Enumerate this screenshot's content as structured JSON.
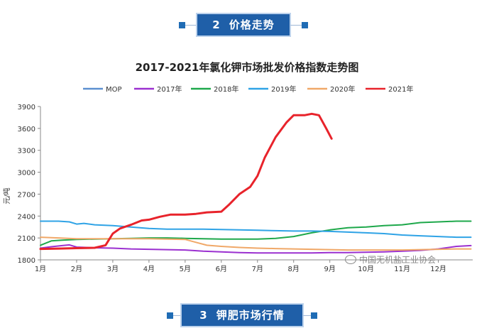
{
  "sections": {
    "price_trend": {
      "number": "2",
      "label": "价格走势"
    },
    "market": {
      "number": "3",
      "label": "钾肥市场行情"
    }
  },
  "watermark": {
    "text": "中国无机盐工业协会",
    "icon": "wechat-icon"
  },
  "chart_data": {
    "type": "line",
    "title": "2017-2021年氯化钾市场批发价格指数走势图",
    "xlabel": "",
    "ylabel": "元/吨",
    "ylim": [
      1800,
      3900
    ],
    "yticks": [
      1800,
      2100,
      2400,
      2700,
      3000,
      3300,
      3600,
      3900
    ],
    "xlim": [
      1,
      12.95
    ],
    "xticks": [
      1,
      2,
      3,
      4,
      5,
      6,
      7,
      8,
      9,
      10,
      11,
      12
    ],
    "xtick_labels": [
      "1月",
      "2月",
      "3月",
      "4月",
      "5月",
      "6月",
      "7月",
      "8月",
      "9月",
      "10月",
      "11月",
      "12月"
    ],
    "grid": false,
    "legend_position": "top",
    "series": [
      {
        "name": "MOP",
        "color": "#5b8fd0",
        "x": [],
        "y": []
      },
      {
        "name": "2017年",
        "color": "#9b30d0",
        "x": [
          1,
          1.3,
          1.6,
          1.8,
          2,
          2.5,
          3,
          3.5,
          4,
          4.5,
          5,
          5.5,
          6,
          6.5,
          7,
          7.5,
          8,
          8.5,
          9,
          9.5,
          10,
          10.5,
          11,
          11.5,
          12,
          12.5,
          12.9
        ],
        "y": [
          1960,
          1980,
          1995,
          2005,
          1975,
          1965,
          1960,
          1950,
          1945,
          1940,
          1935,
          1920,
          1910,
          1900,
          1895,
          1895,
          1895,
          1895,
          1900,
          1900,
          1905,
          1910,
          1920,
          1930,
          1950,
          1985,
          1995
        ]
      },
      {
        "name": "2018年",
        "color": "#1ea84b",
        "x": [
          1,
          1.3,
          1.6,
          2,
          2.5,
          3,
          3.5,
          4,
          4.5,
          5,
          5.5,
          6,
          6.5,
          7,
          7.5,
          8,
          8.5,
          9,
          9.5,
          10,
          10.5,
          11,
          11.5,
          12,
          12.5,
          12.9
        ],
        "y": [
          2000,
          2060,
          2070,
          2080,
          2085,
          2090,
          2095,
          2100,
          2100,
          2095,
          2090,
          2085,
          2085,
          2085,
          2095,
          2120,
          2170,
          2210,
          2240,
          2250,
          2270,
          2280,
          2310,
          2320,
          2330,
          2330
        ]
      },
      {
        "name": "2019年",
        "color": "#2fa3e6",
        "x": [
          1,
          1.5,
          1.8,
          2,
          2.2,
          2.5,
          3,
          3.5,
          4,
          4.5,
          5,
          5.5,
          6,
          6.5,
          7,
          7.5,
          8,
          8.5,
          9,
          9.5,
          10,
          10.5,
          11,
          11.5,
          12,
          12.5,
          12.9
        ],
        "y": [
          2330,
          2330,
          2320,
          2290,
          2300,
          2280,
          2270,
          2250,
          2230,
          2220,
          2220,
          2220,
          2215,
          2210,
          2205,
          2200,
          2195,
          2195,
          2190,
          2180,
          2170,
          2160,
          2140,
          2130,
          2120,
          2110,
          2110
        ]
      },
      {
        "name": "2020年",
        "color": "#f0a868",
        "x": [
          1,
          1.5,
          2,
          2.5,
          3,
          3.5,
          4,
          4.5,
          5,
          5.3,
          5.6,
          6,
          6.5,
          7,
          7.5,
          8,
          8.5,
          9,
          9.5,
          10,
          10.5,
          11,
          11.5,
          12,
          12.5,
          12.9
        ],
        "y": [
          2110,
          2100,
          2090,
          2090,
          2090,
          2090,
          2090,
          2085,
          2080,
          2040,
          2000,
          1985,
          1970,
          1960,
          1955,
          1950,
          1945,
          1940,
          1935,
          1935,
          1935,
          1935,
          1940,
          1945,
          1950,
          1950
        ]
      },
      {
        "name": "2021年",
        "color": "#e8232b",
        "x": [
          1,
          1.5,
          2,
          2.5,
          2.8,
          3,
          3.2,
          3.5,
          3.8,
          4,
          4.3,
          4.6,
          5,
          5.3,
          5.6,
          6,
          6.2,
          6.5,
          6.8,
          7,
          7.2,
          7.5,
          7.8,
          8,
          8.3,
          8.5,
          8.7,
          8.9,
          9.05
        ],
        "y": [
          1950,
          1955,
          1960,
          1965,
          2000,
          2160,
          2230,
          2280,
          2340,
          2350,
          2390,
          2420,
          2420,
          2430,
          2450,
          2460,
          2550,
          2700,
          2800,
          2950,
          3200,
          3480,
          3680,
          3780,
          3780,
          3800,
          3780,
          3600,
          3460
        ]
      }
    ]
  }
}
